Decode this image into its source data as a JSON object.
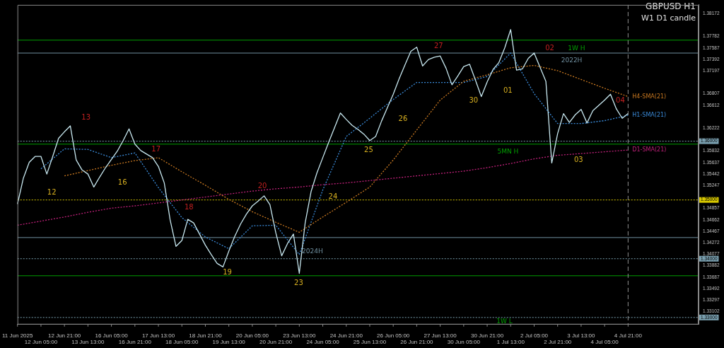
{
  "chart_data": {
    "type": "line",
    "title": "GBPUSD H1",
    "subtitle": "W1 D1 candle",
    "categories": [
      "11 Jun 2025",
      null,
      null,
      null,
      "12 Jun 05:00",
      null,
      null,
      null,
      "12 Jun 21:00",
      null,
      null,
      null,
      "13 Jun 13:00",
      null,
      null,
      null,
      "16 Jun 05:00",
      null,
      null,
      null,
      "16 Jun 21:00",
      null,
      null,
      null,
      "17 Jun 13:00",
      null,
      null,
      null,
      "18 Jun 05:00",
      null,
      null,
      null,
      "18 Jun 21:00",
      null,
      null,
      null,
      "19 Jun 13:00",
      null,
      null,
      null,
      "20 Jun 05:00",
      null,
      null,
      null,
      "20 Jun 21:00",
      null,
      null,
      null,
      "23 Jun 13:00",
      null,
      null,
      null,
      "24 Jun 05:00",
      null,
      null,
      null,
      "24 Jun 21:00",
      null,
      null,
      null,
      "25 Jun 13:00",
      null,
      null,
      null,
      "26 Jun 05:00",
      null,
      null,
      null,
      "26 Jun 21:00",
      null,
      null,
      null,
      "27 Jun 13:00",
      null,
      null,
      null,
      "30 Jun 05:00",
      null,
      null,
      null,
      "30 Jun 21:00",
      null,
      null,
      null,
      "1 Jul 13:00",
      null,
      null,
      null,
      "2 Jul 05:00",
      null,
      null,
      null,
      "2 Jul 21:00",
      null,
      null,
      null,
      "3 Jul 13:00",
      null,
      null,
      null,
      "4 Jul 05:00",
      null,
      null,
      null,
      "4 Jul 21:00",
      null,
      null,
      null,
      null,
      null,
      null,
      null,
      null,
      null,
      null,
      null,
      null
    ],
    "series": [
      {
        "color": "#c8e8f0",
        "values": [
          1.3493,
          1.3537,
          1.3564,
          1.3574,
          1.3574,
          1.3544,
          1.3574,
          1.3605,
          1.3616,
          1.3626,
          1.3568,
          1.3551,
          1.3544,
          1.3522,
          1.3539,
          1.3555,
          1.3569,
          1.3583,
          1.3601,
          1.3621,
          1.3595,
          1.3584,
          1.3578,
          1.3572,
          1.3557,
          1.3529,
          1.3466,
          1.3421,
          1.3431,
          1.3467,
          1.3461,
          1.3442,
          1.3423,
          1.3407,
          1.3392,
          1.3386,
          1.3413,
          1.3438,
          1.3459,
          1.3476,
          1.349,
          1.3498,
          1.3507,
          1.3492,
          1.3444,
          1.3405,
          1.3426,
          1.3442,
          1.3375,
          1.3461,
          1.3514,
          1.3546,
          1.3572,
          1.3598,
          1.3623,
          1.3648,
          1.3637,
          1.3627,
          1.362,
          1.3612,
          1.3601,
          1.3608,
          1.3634,
          1.3657,
          1.368,
          1.3706,
          1.373,
          1.3753,
          1.376,
          1.3728,
          1.3739,
          1.3743,
          1.3745,
          1.3724,
          1.3696,
          1.3711,
          1.3727,
          1.3731,
          1.3704,
          1.3676,
          1.3701,
          1.3722,
          1.3734,
          1.3759,
          1.379,
          1.3721,
          1.3723,
          1.3741,
          1.375,
          1.3726,
          1.3702,
          1.3563,
          1.3613,
          1.3647,
          1.3632,
          1.3645,
          1.3654,
          1.3631,
          1.3652,
          1.3661,
          1.367,
          1.368,
          1.3655,
          1.3639,
          1.3647,
          null,
          null,
          null,
          null,
          null,
          null,
          null,
          null,
          null,
          null,
          null,
          null
        ]
      },
      {
        "name": "H4-SMA(21)",
        "color": "#c87820",
        "line_style": "dotted",
        "values": [
          null,
          null,
          null,
          null,
          null,
          null,
          null,
          null,
          1.3541,
          null,
          null,
          null,
          1.355,
          null,
          null,
          null,
          1.3559,
          null,
          null,
          null,
          1.3567,
          null,
          null,
          null,
          1.3572,
          null,
          null,
          null,
          1.3548,
          null,
          null,
          null,
          1.3525,
          null,
          null,
          null,
          1.3501,
          null,
          null,
          null,
          1.348,
          null,
          null,
          null,
          1.3462,
          null,
          null,
          null,
          1.3445,
          null,
          null,
          null,
          1.3471,
          null,
          null,
          null,
          1.3496,
          null,
          null,
          null,
          1.3522,
          null,
          null,
          null,
          1.3568,
          null,
          null,
          null,
          1.3619,
          null,
          null,
          null,
          1.367,
          null,
          null,
          null,
          1.3702,
          null,
          null,
          null,
          1.3713,
          null,
          null,
          null,
          1.3725,
          null,
          null,
          null,
          1.3729,
          null,
          null,
          null,
          1.372,
          null,
          null,
          null,
          1.3705,
          null,
          null,
          null,
          1.369,
          null,
          null,
          null,
          1.3676,
          null,
          null,
          null,
          null,
          null,
          null,
          null,
          null,
          null,
          null,
          null,
          null
        ]
      },
      {
        "name": "H1-SMA(21)",
        "color": "#3a8ad8",
        "line_style": "dotted",
        "values": [
          null,
          null,
          null,
          null,
          1.3553,
          null,
          null,
          null,
          1.3587,
          null,
          null,
          null,
          1.3586,
          null,
          null,
          null,
          1.3572,
          null,
          null,
          null,
          1.358,
          null,
          null,
          null,
          1.3521,
          null,
          null,
          null,
          1.347,
          null,
          null,
          null,
          1.3437,
          null,
          null,
          null,
          1.3417,
          null,
          null,
          null,
          1.3456,
          null,
          null,
          null,
          1.3457,
          null,
          null,
          null,
          1.3407,
          null,
          null,
          null,
          1.3517,
          null,
          null,
          null,
          1.3608,
          null,
          null,
          null,
          1.3639,
          null,
          null,
          null,
          1.3671,
          null,
          null,
          null,
          1.37,
          null,
          null,
          null,
          1.37,
          null,
          null,
          null,
          1.37,
          null,
          null,
          null,
          1.371,
          null,
          null,
          null,
          1.375,
          null,
          null,
          null,
          1.3681,
          null,
          null,
          null,
          1.363,
          null,
          null,
          null,
          1.363,
          null,
          null,
          null,
          1.3635,
          null,
          null,
          null,
          1.3644,
          null,
          null,
          null,
          null,
          null,
          null,
          null,
          null,
          null,
          null,
          null,
          null
        ]
      },
      {
        "name": "D1-SMA(21)",
        "color": "#c0207a",
        "line_style": "dotted",
        "values": [
          1.3457,
          null,
          null,
          null,
          1.3464,
          null,
          null,
          null,
          1.3471,
          null,
          null,
          null,
          1.3479,
          null,
          null,
          null,
          1.3486,
          null,
          null,
          null,
          1.349,
          null,
          null,
          null,
          1.3495,
          null,
          null,
          null,
          1.35,
          null,
          null,
          null,
          1.3505,
          null,
          null,
          null,
          1.351,
          null,
          null,
          null,
          1.3515,
          null,
          null,
          null,
          1.3519,
          null,
          null,
          null,
          1.3522,
          null,
          null,
          null,
          1.3526,
          null,
          null,
          null,
          1.3529,
          null,
          null,
          null,
          1.3533,
          null,
          null,
          null,
          1.3537,
          null,
          null,
          null,
          1.3541,
          null,
          null,
          null,
          1.3545,
          null,
          null,
          null,
          1.3549,
          null,
          null,
          null,
          1.3555,
          null,
          null,
          null,
          1.3562,
          null,
          null,
          null,
          1.357,
          null,
          null,
          null,
          1.3576,
          null,
          null,
          null,
          1.3579,
          null,
          null,
          null,
          1.3582,
          null,
          null,
          null,
          1.3585,
          null,
          null,
          null,
          null,
          null,
          null,
          null,
          null,
          null,
          null,
          null,
          null
        ]
      }
    ],
    "ylim": [
      1.3288,
      1.3832
    ],
    "yticks": [
      1.38172,
      1.37782,
      1.37587,
      1.37392,
      1.37197,
      1.36807,
      1.36612,
      1.36222,
      1.35832,
      1.35637,
      1.35442,
      1.35247,
      1.34857,
      1.34662,
      1.34467,
      1.34272,
      1.34077,
      1.33882,
      1.33687,
      1.33492,
      1.33297,
      1.33102
    ],
    "ref_lines": [
      {
        "axis": "y",
        "value": 1.3772,
        "label": "1W H",
        "color": "#00a000"
      },
      {
        "axis": "y",
        "value": 1.375,
        "label": "2022H",
        "color": "#7090a0"
      },
      {
        "axis": "y",
        "value": 1.3595,
        "label": "5MN H",
        "color": "#00a000"
      },
      {
        "axis": "y",
        "value": 1.3436,
        "label": "2024H",
        "color": "#7090a0"
      },
      {
        "axis": "y",
        "value": 1.3371,
        "label": "1W L",
        "color": "#00a000"
      },
      {
        "axis": "y",
        "value": 1.36,
        "label": "1.36000",
        "color": "#7aa0b0",
        "line_style": "dotted"
      },
      {
        "axis": "y",
        "value": 1.35,
        "label": "1.35000",
        "color": "#d8c800",
        "line_style": "dotted"
      },
      {
        "axis": "y",
        "value": 1.34,
        "label": "1.34000",
        "color": "#7aa0b0",
        "line_style": "dotted"
      },
      {
        "axis": "y",
        "value": 1.33,
        "label": "1.33000",
        "color": "#7aa0b0",
        "line_style": "dotted"
      },
      {
        "axis": "x",
        "value": "4 Jul 21:00",
        "color": "#909090",
        "line_style": "dashed"
      }
    ],
    "annotations": [
      "12",
      "13",
      "16",
      "17",
      "18",
      "19",
      "20",
      "23",
      "24",
      "25",
      "26",
      "27",
      "30",
      "01",
      "02",
      "03",
      "04"
    ],
    "grid": false,
    "legend": false,
    "marker": "none",
    "line_style": "solid"
  }
}
